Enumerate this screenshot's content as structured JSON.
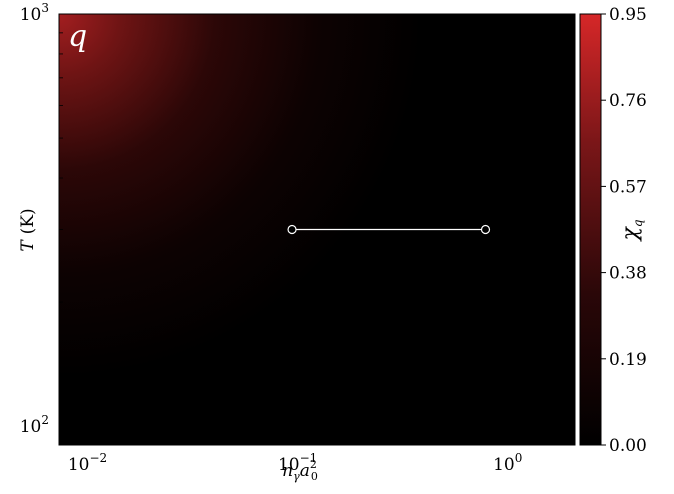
{
  "chart_data": {
    "type": "heatmap",
    "title": "",
    "panel_label": "q",
    "xlabel": {
      "base": "n",
      "sub1": "γ",
      "mid": "a",
      "sub2": "0",
      "sup": "2"
    },
    "ylabel": {
      "main": "T",
      "unit": "(K)"
    },
    "x_scale": "log",
    "y_scale": "log",
    "xlim": [
      0.007,
      2.0
    ],
    "ylim": [
      90,
      1000
    ],
    "x_ticks": [
      {
        "value": 0.01,
        "base": "10",
        "exp": "−2"
      },
      {
        "value": 0.1,
        "base": "10",
        "exp": "−1"
      },
      {
        "value": 1.0,
        "base": "10",
        "exp": "0"
      }
    ],
    "y_ticks": [
      {
        "value": 100,
        "base": "10",
        "exp": "2"
      },
      {
        "value": 1000,
        "base": "10",
        "exp": "3"
      }
    ],
    "colorbar": {
      "label_base": "χ",
      "label_sub": "q",
      "min": 0.0,
      "max": 0.95,
      "ticks": [
        "0.95",
        "0.76",
        "0.57",
        "0.38",
        "0.19",
        "0.00"
      ],
      "color_low": "#000000",
      "color_high": "#d62728"
    },
    "segment": {
      "x": [
        0.09,
        0.75
      ],
      "y": [
        300,
        300
      ],
      "color": "#ffffff"
    }
  }
}
